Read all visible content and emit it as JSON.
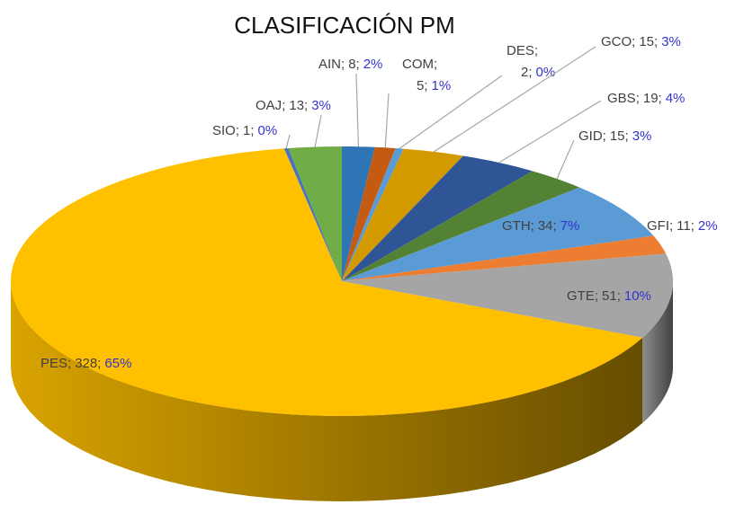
{
  "chart_data": {
    "type": "pie3d",
    "title": "CLASIFICACIÓN PM",
    "categories": [
      "AIN",
      "COM",
      "DES",
      "GCO",
      "GBS",
      "GID",
      "GTH",
      "GFI",
      "GTE",
      "PES",
      "SIO",
      "OAJ"
    ],
    "values": [
      8,
      5,
      2,
      15,
      19,
      15,
      34,
      11,
      51,
      328,
      1,
      13
    ],
    "percent_labels": [
      "2%",
      "1%",
      "0%",
      "3%",
      "4%",
      "3%",
      "7%",
      "2%",
      "10%",
      "65%",
      "0%",
      "3%"
    ],
    "separator": ";",
    "colors": [
      "#2e75b6",
      "#c55a11",
      "#5b9bd5",
      "#d39a00",
      "#2f5597",
      "#548235",
      "#5b9bd5",
      "#ed7d31",
      "#a5a5a5",
      "#ffc000",
      "#4472c4",
      "#70ad47"
    ]
  }
}
